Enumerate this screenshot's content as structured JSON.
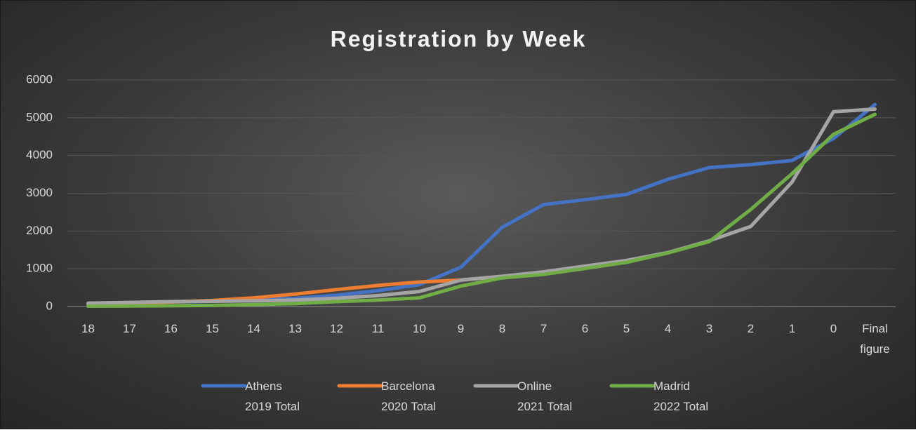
{
  "chart_data": {
    "type": "line",
    "title": "Registration by Week",
    "categories": [
      "18",
      "17",
      "16",
      "15",
      "14",
      "13",
      "12",
      "11",
      "10",
      "9",
      "8",
      "7",
      "6",
      "5",
      "4",
      "3",
      "2",
      "1",
      "0",
      "Final figure"
    ],
    "series": [
      {
        "name": "Athens 2019 Total",
        "color": "#4472c4",
        "values": [
          80,
          100,
          120,
          140,
          170,
          220,
          300,
          420,
          580,
          1040,
          2100,
          2700,
          2830,
          2970,
          3370,
          3680,
          3760,
          3870,
          4450,
          5350
        ]
      },
      {
        "name": "Barcelona 2020 Total",
        "color": "#ed7d31",
        "values": [
          60,
          90,
          120,
          160,
          230,
          330,
          450,
          560,
          650,
          700,
          800,
          null,
          null,
          null,
          null,
          null,
          null,
          null,
          null,
          null
        ]
      },
      {
        "name": "Online 2021 Total",
        "color": "#a5a5a5",
        "values": [
          90,
          110,
          130,
          140,
          150,
          170,
          220,
          290,
          400,
          700,
          800,
          920,
          1070,
          1220,
          1430,
          1740,
          2120,
          3300,
          5160,
          5230
        ]
      },
      {
        "name": "Madrid 2022 Total",
        "color": "#70ad47",
        "values": [
          10,
          15,
          20,
          30,
          50,
          80,
          130,
          170,
          230,
          540,
          760,
          850,
          1010,
          1170,
          1420,
          1720,
          2570,
          3520,
          4560,
          5090
        ]
      }
    ],
    "ylim": [
      0,
      6000
    ],
    "yticks": [
      0,
      1000,
      2000,
      3000,
      4000,
      5000,
      6000
    ],
    "grid": true,
    "legend": "bottom"
  }
}
